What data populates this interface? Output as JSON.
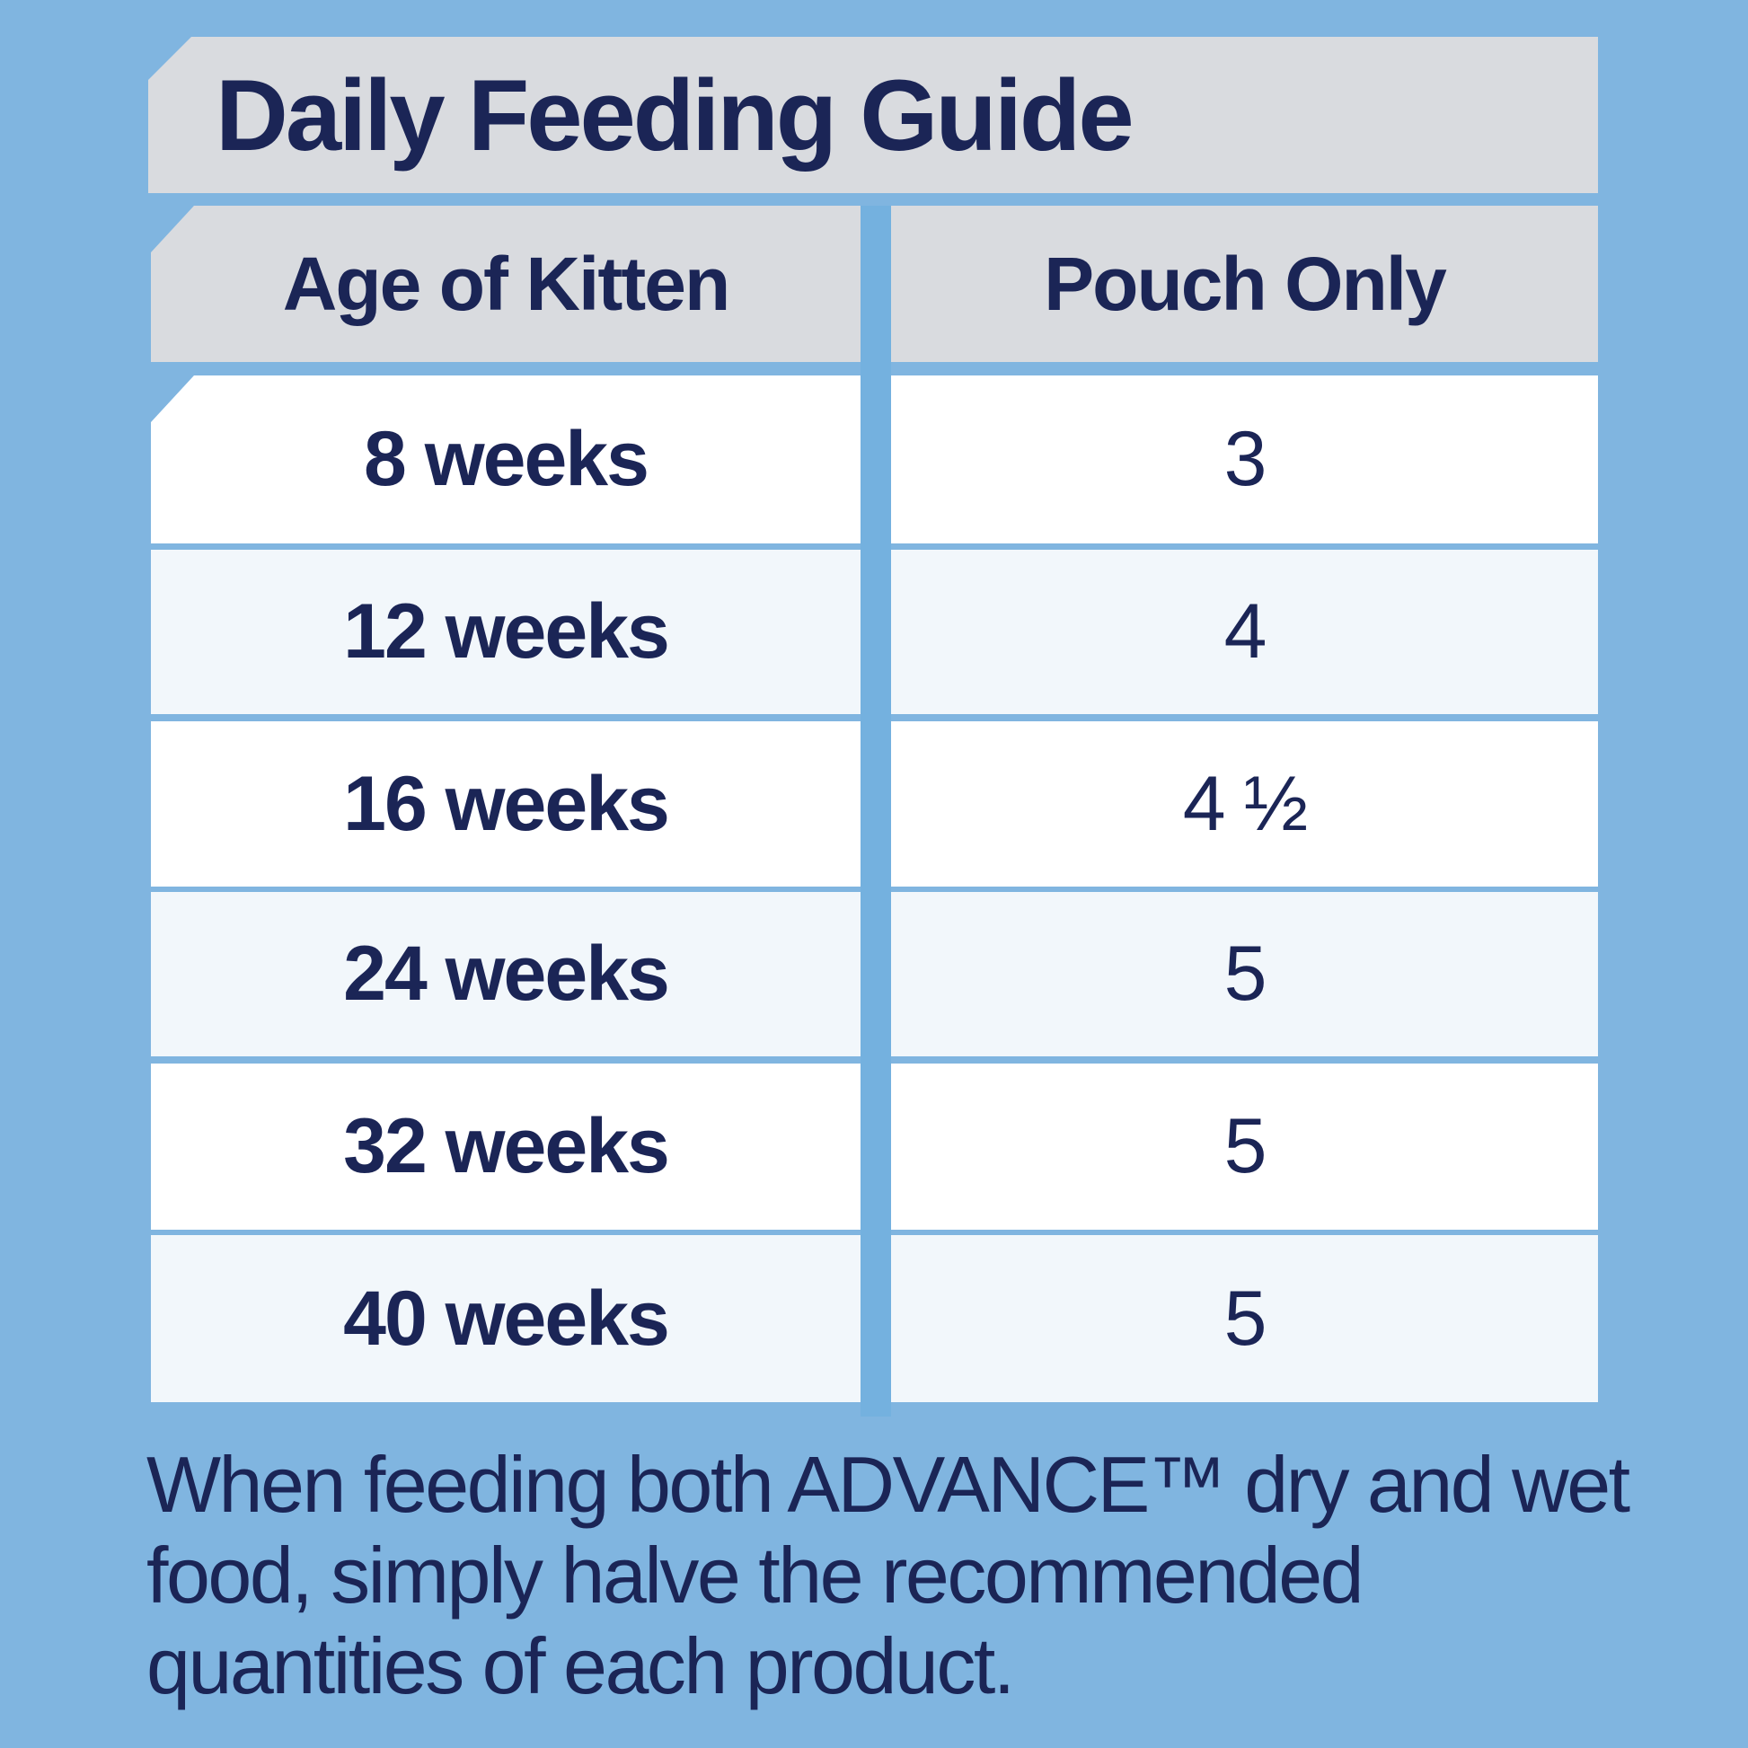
{
  "title": "Daily Feeding Guide",
  "table": {
    "headers": [
      "Age of Kitten",
      "Pouch Only"
    ],
    "rows": [
      {
        "age": "8 weeks",
        "pouches": "3"
      },
      {
        "age": "12 weeks",
        "pouches": "4"
      },
      {
        "age": "16 weeks",
        "pouches": "4 ½"
      },
      {
        "age": "24 weeks",
        "pouches": "5"
      },
      {
        "age": "32 weeks",
        "pouches": "5"
      },
      {
        "age": "40 weeks",
        "pouches": "5"
      }
    ]
  },
  "note": "When feeding both ADVANCE™ dry and wet food, simply halve the recommended quantities of each product.",
  "colors": {
    "background": "#80b5e0",
    "header": "#d9dbdf",
    "text": "#1b2556",
    "row_alt": "#f2f7fb"
  }
}
